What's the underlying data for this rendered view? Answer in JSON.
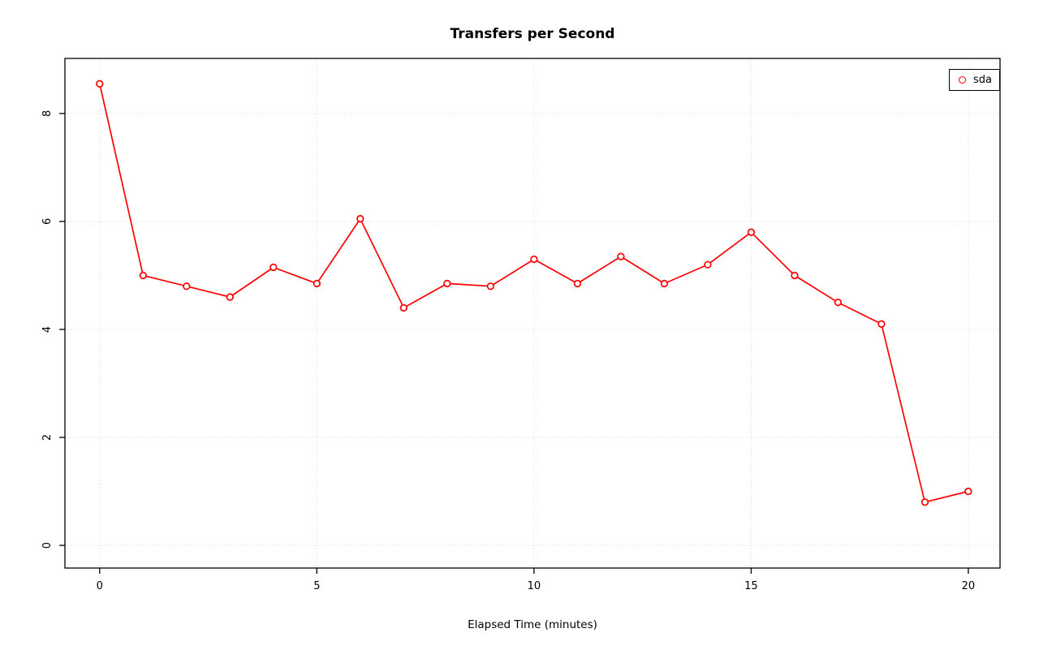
{
  "chart_data": {
    "type": "line",
    "title": "Transfers per Second",
    "xlabel": "Elapsed Time (minutes)",
    "ylabel": "",
    "x": [
      0,
      1,
      2,
      3,
      4,
      5,
      6,
      7,
      8,
      9,
      10,
      11,
      12,
      13,
      14,
      15,
      16,
      17,
      18,
      19,
      20
    ],
    "series": [
      {
        "name": "sda",
        "color": "#ff0000",
        "values": [
          8.55,
          5.0,
          4.8,
          4.6,
          5.15,
          4.85,
          6.05,
          4.4,
          4.85,
          4.8,
          5.3,
          4.85,
          5.35,
          4.85,
          5.2,
          5.8,
          5.0,
          4.5,
          4.1,
          0.8,
          1.0
        ]
      }
    ],
    "xticks": [
      0,
      5,
      10,
      15,
      20
    ],
    "yticks": [
      0,
      2,
      4,
      6,
      8
    ],
    "xlim": [
      -0.8,
      20.73
    ],
    "ylim": [
      -0.42,
      9.02
    ],
    "grid": true,
    "grid_style": "dotted",
    "grid_color": "#d7d7d7",
    "legend_position": "top-right",
    "marker": "open-circle",
    "background": "#ffffff",
    "axis_color": "#000000"
  }
}
